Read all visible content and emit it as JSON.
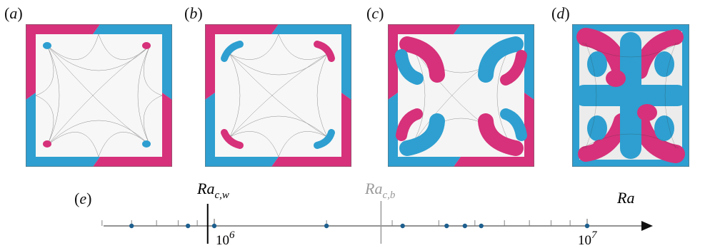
{
  "panels": [
    {
      "id": "a",
      "open": "(",
      "letter": "a",
      "close": ")"
    },
    {
      "id": "b",
      "open": "(",
      "letter": "b",
      "close": ")"
    },
    {
      "id": "c",
      "open": "(",
      "letter": "c",
      "close": ")"
    },
    {
      "id": "d",
      "open": "(",
      "letter": "d",
      "close": ")"
    }
  ],
  "axis_panel": {
    "open": "(",
    "letter": "e",
    "close": ")"
  },
  "axis": {
    "label": "Ra",
    "critical_wall": {
      "main": "Ra",
      "sub": "c,w"
    },
    "critical_bulk": {
      "main": "Ra",
      "sub": "c,b"
    },
    "tick_1e6": {
      "base": "10",
      "exp": "6"
    },
    "tick_1e7": {
      "base": "10",
      "exp": "7"
    }
  },
  "chart_data": {
    "type": "scatter",
    "x_scale": "log",
    "xlim": [
      400000,
      18000000
    ],
    "points": [
      600000,
      850000,
      1000000,
      2000000,
      3200000,
      4200000,
      4700000,
      5200000,
      10000000
    ],
    "critical_wall": 960000,
    "critical_bulk": 2800000,
    "colors": {
      "pink": "#d6317a",
      "blue": "#2e9fd0",
      "point": "#1d5f8e",
      "wall_line": "#000000",
      "bulk_line": "#9a9a9a"
    }
  }
}
